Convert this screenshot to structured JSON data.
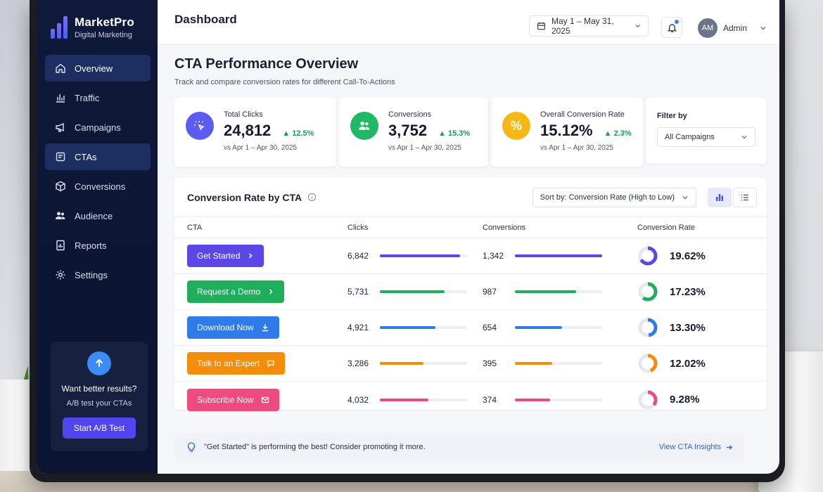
{
  "brand": {
    "name": "MarketPro",
    "tagline": "Digital Marketing"
  },
  "nav": [
    {
      "label": "Overview",
      "icon": "home-icon",
      "active": true
    },
    {
      "label": "Traffic",
      "icon": "bar-chart-icon",
      "active": false
    },
    {
      "label": "Campaigns",
      "icon": "megaphone-icon",
      "active": false
    },
    {
      "label": "CTAs",
      "icon": "cta-icon",
      "active": true
    },
    {
      "label": "Conversions",
      "icon": "box-icon",
      "active": false
    },
    {
      "label": "Audience",
      "icon": "users-icon",
      "active": false
    },
    {
      "label": "Reports",
      "icon": "report-icon",
      "active": false
    },
    {
      "label": "Settings",
      "icon": "gear-icon",
      "active": false
    }
  ],
  "promo": {
    "title": "Want better results?",
    "subtitle": "A/B test your CTAs",
    "button": "Start A/B Test"
  },
  "header": {
    "title": "Dashboard",
    "date_range": "May 1 – May 31, 2025",
    "user": "Admin",
    "avatar_initials": "AM"
  },
  "page": {
    "title": "CTA Performance Overview",
    "subtitle": "Track and compare conversion rates for different Call-To-Actions"
  },
  "stats": [
    {
      "label": "Total Clicks",
      "value": "24,812",
      "delta": "12.5%",
      "period": "vs Apr 1 – Apr 30, 2025",
      "color": "#5b5cf0",
      "icon": "cursor-click-icon"
    },
    {
      "label": "Conversions",
      "value": "3,752",
      "delta": "15.3%",
      "period": "vs Apr 1 – Apr 30, 2025",
      "color": "#1fb866",
      "icon": "users-icon"
    },
    {
      "label": "Overall Conversion Rate",
      "value": "15.12%",
      "delta": "2.3%",
      "period": "vs Apr 1 – Apr 30, 2025",
      "color": "#f5b814",
      "icon": "percent-icon"
    }
  ],
  "filter": {
    "label": "Filter by",
    "value": "All Campaigns"
  },
  "table": {
    "title": "Conversion Rate by CTA",
    "sort": "Sort by: Conversion Rate (High to Low)",
    "columns": [
      "CTA",
      "Clicks",
      "Conversions",
      "Conversion Rate"
    ],
    "rows": [
      {
        "cta": "Get Started",
        "icon": "chevron-right-icon",
        "color": "#5b47e8",
        "clicks": "6,842",
        "clicks_frac": 0.92,
        "conversions": "1,342",
        "conv_frac": 1.0,
        "rate": "19.62%",
        "rate_frac": 0.66
      },
      {
        "cta": "Request a Demo",
        "icon": "chevron-right-icon",
        "color": "#1fae5b",
        "clicks": "5,731",
        "clicks_frac": 0.74,
        "conversions": "987",
        "conv_frac": 0.7,
        "rate": "17.23%",
        "rate_frac": 0.6
      },
      {
        "cta": "Download Now",
        "icon": "download-icon",
        "color": "#2f7bea",
        "clicks": "4,921",
        "clicks_frac": 0.64,
        "conversions": "654",
        "conv_frac": 0.54,
        "rate": "13.30%",
        "rate_frac": 0.48
      },
      {
        "cta": "Talk to an Expert",
        "icon": "chat-icon",
        "color": "#f58d0c",
        "clicks": "3,286",
        "clicks_frac": 0.5,
        "conversions": "395",
        "conv_frac": 0.43,
        "rate": "12.02%",
        "rate_frac": 0.44
      },
      {
        "cta": "Subscribe Now",
        "icon": "mail-icon",
        "color": "#ee4c7f",
        "clicks": "4,032",
        "clicks_frac": 0.56,
        "conversions": "374",
        "conv_frac": 0.4,
        "rate": "9.28%",
        "rate_frac": 0.36
      }
    ]
  },
  "insight": {
    "text": "\"Get Started\" is performing the best! Consider promoting it more.",
    "link": "View CTA Insights"
  }
}
